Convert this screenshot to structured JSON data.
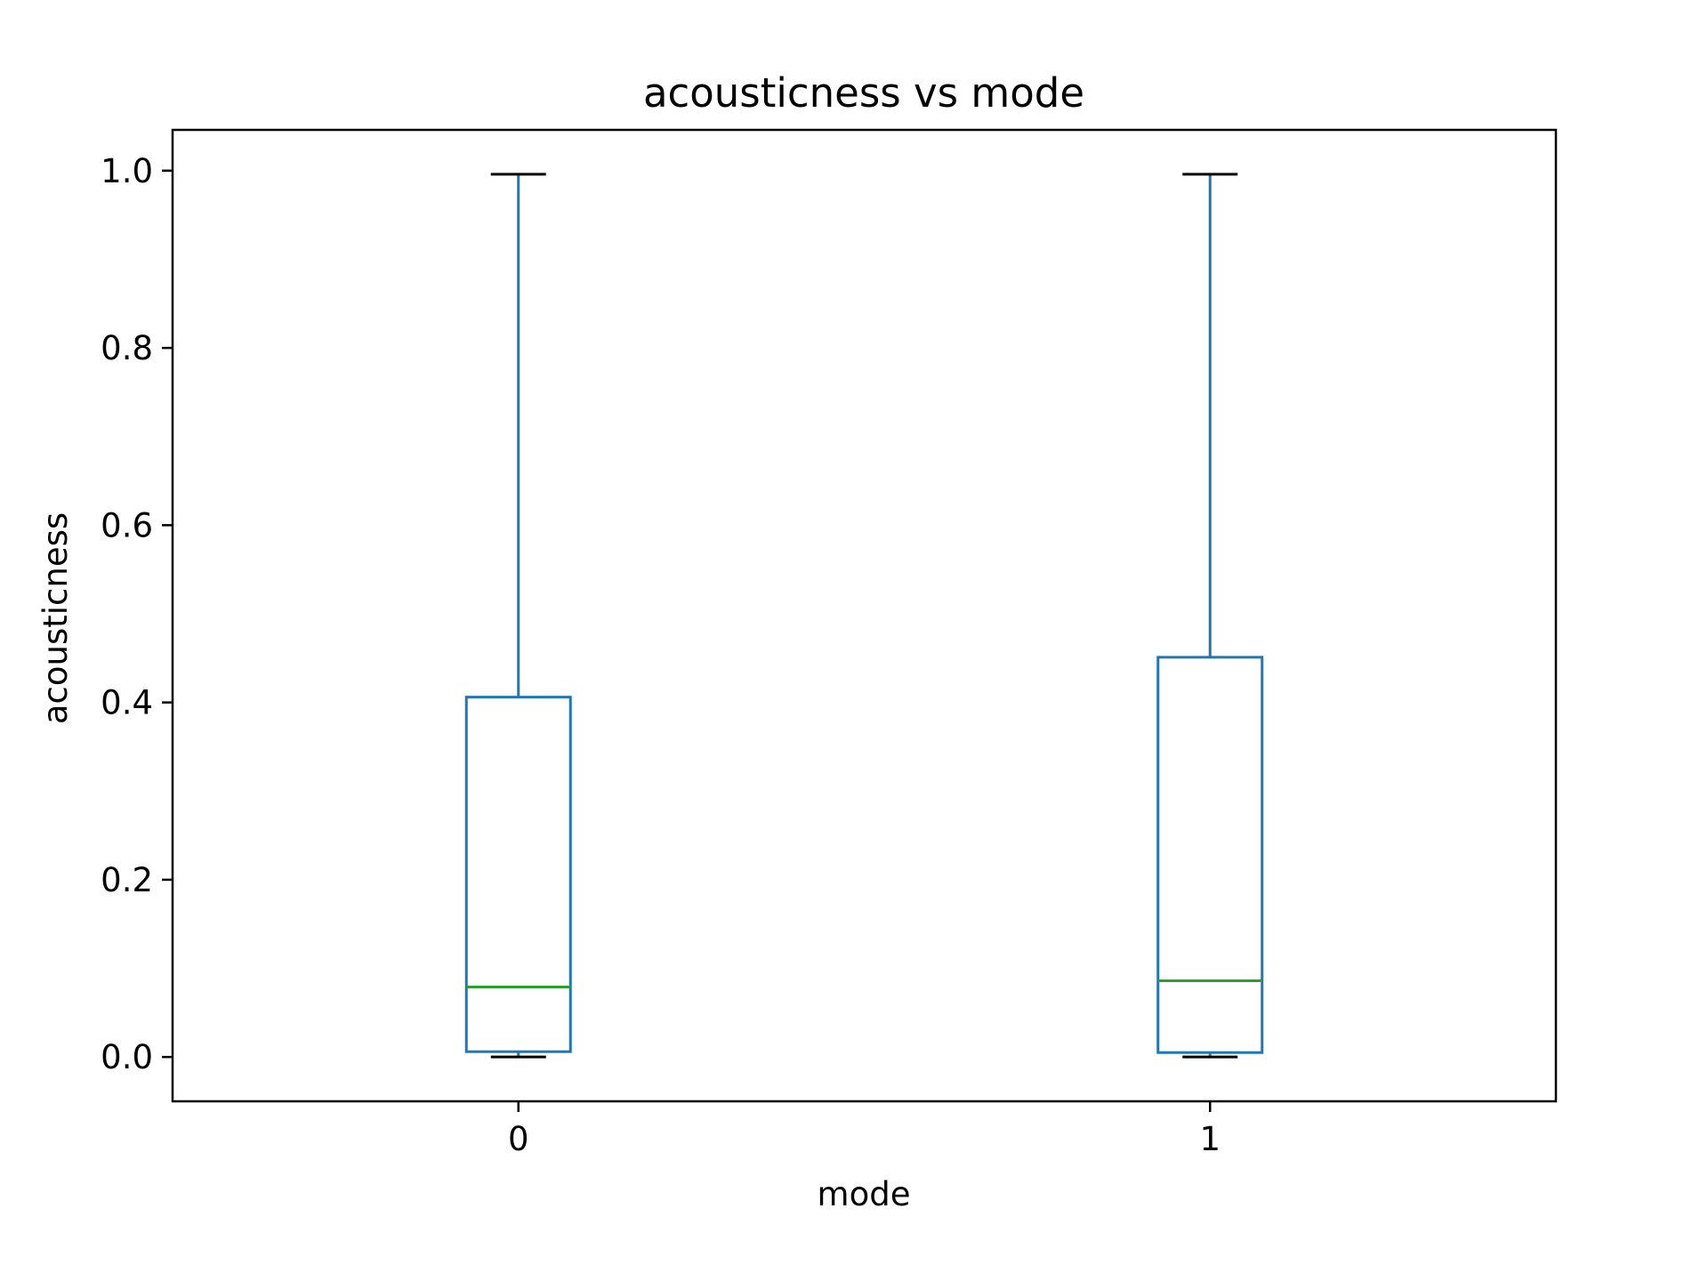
{
  "chart_data": {
    "type": "box",
    "title": "acousticness vs mode",
    "xlabel": "mode",
    "ylabel": "acousticness",
    "categories": [
      "0",
      "1"
    ],
    "boxes": [
      {
        "category": "0",
        "whisker_low": 0.0,
        "q1": 0.006,
        "median": 0.079,
        "q3": 0.406,
        "whisker_high": 0.996
      },
      {
        "category": "1",
        "whisker_low": 0.0,
        "q1": 0.005,
        "median": 0.086,
        "q3": 0.451,
        "whisker_high": 0.996
      }
    ],
    "ylim": [
      -0.05,
      1.046
    ],
    "yticks": [
      0.0,
      0.2,
      0.4,
      0.6,
      0.8,
      1.0
    ],
    "ytick_labels": [
      "0.0",
      "0.2",
      "0.4",
      "0.6",
      "0.8",
      "1.0"
    ],
    "grid": false,
    "colors": {
      "box": "#1f77b4",
      "median": "#2ca02c",
      "caps": "#000000",
      "axes": "#000000"
    }
  }
}
